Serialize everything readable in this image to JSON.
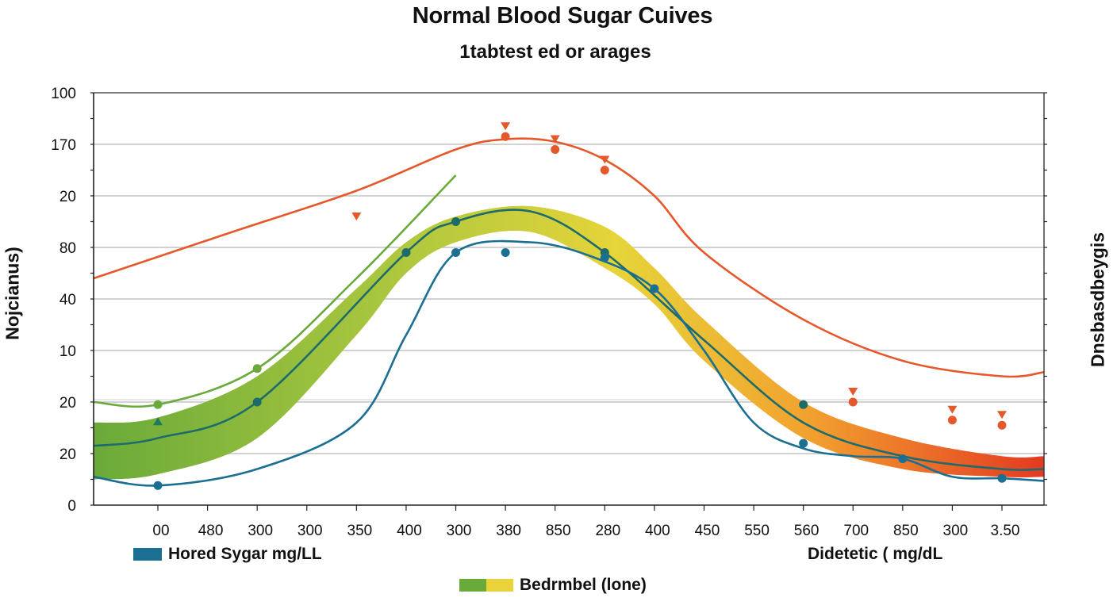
{
  "chart_data": {
    "type": "line",
    "title": "Normal Blood Sugar Cuives",
    "subtitle": "1tabtest ed or arages",
    "ylabel": "Nojcianus)",
    "ylabel_right": "Dnsbasdbeygis",
    "xlabel": "",
    "grid": true,
    "y_tick_labels": [
      "0",
      "20",
      "20",
      "10",
      "40",
      "80",
      "20",
      "170",
      "100"
    ],
    "y_tick_note": "tick labels as printed, bottom to top; series values below are in tick-level units (0 = bottom tick, 8 = top tick)",
    "ylim": [
      0,
      8
    ],
    "x_tick_labels": [
      "00",
      "480",
      "300",
      "300",
      "350",
      "400",
      "300",
      "380",
      "850",
      "280",
      "400",
      "450",
      "550",
      "560",
      "700",
      "850",
      "300",
      "3.50"
    ],
    "x_note": "series x values are tick indices (0 = first tick '00', 17 = last tick '3.50'); plot starts ~1.3 ticks left of first tick",
    "xlim": [
      -1.3,
      17.85
    ],
    "series": [
      {
        "name": "Upper curve (orange-red)",
        "color": "#e5582b",
        "marker": "triangle-down",
        "x": [
          -1.3,
          1.5,
          4,
          6,
          7,
          8,
          9,
          10,
          11,
          13,
          15,
          17,
          17.85
        ],
        "y": [
          4.4,
          5.3,
          6.1,
          6.9,
          7.1,
          7.05,
          6.7,
          6.0,
          4.9,
          3.6,
          2.8,
          2.5,
          2.58
        ],
        "marked_x": [
          4,
          7,
          8,
          9,
          14,
          16,
          17
        ],
        "marked_y": [
          5.4,
          7.15,
          6.9,
          6.5,
          2.0,
          1.65,
          1.55
        ]
      },
      {
        "name": "Top green curve",
        "color": "#6aaa3a",
        "marker": "circle",
        "x": [
          -1.3,
          0,
          2,
          4,
          6
        ],
        "y": [
          2.0,
          1.95,
          2.65,
          4.4,
          6.4
        ],
        "marked_x": [
          0,
          2
        ],
        "marked_y": [
          1.95,
          2.65
        ]
      },
      {
        "name": "Middle curve (dark teal)",
        "color": "#1e6b6b",
        "marker": "circle",
        "x": [
          -1.3,
          0,
          2,
          5,
          6,
          7.5,
          9,
          11,
          13,
          15,
          17,
          17.85
        ],
        "y": [
          1.15,
          1.3,
          2.0,
          4.9,
          5.5,
          5.7,
          4.9,
          3.2,
          1.6,
          0.95,
          0.7,
          0.7
        ],
        "marked_x": [
          2,
          5,
          6,
          9,
          13
        ],
        "marked_y": [
          2.0,
          4.9,
          5.5,
          4.9,
          1.95
        ]
      },
      {
        "name": "Hored Sygar mg/LL (blue)",
        "color": "#1a6f93",
        "marker": "circle",
        "x": [
          -1.3,
          0,
          2,
          4,
          5,
          6,
          7.5,
          8.8,
          10,
          11,
          12,
          13,
          14,
          15,
          16,
          17,
          17.85
        ],
        "y": [
          0.55,
          0.38,
          0.7,
          1.6,
          3.3,
          4.9,
          5.1,
          4.8,
          4.2,
          3.0,
          1.6,
          1.1,
          0.95,
          0.9,
          0.55,
          0.52,
          0.47
        ],
        "marked_x": [
          0,
          6,
          7,
          9,
          10,
          13,
          15,
          17
        ],
        "marked_y": [
          0.38,
          4.9,
          4.9,
          4.8,
          4.2,
          1.2,
          0.9,
          0.52
        ]
      }
    ],
    "band": {
      "name": "Bedrmbel (lone)",
      "colors": [
        "#6aaa3a",
        "#a8c63e",
        "#e6d43a",
        "#f2a22f",
        "#e43a22"
      ],
      "x": [
        -1.3,
        0,
        2,
        4,
        5,
        6,
        7.5,
        9,
        10,
        11,
        13,
        15,
        17,
        17.85
      ],
      "upper": [
        1.6,
        1.7,
        2.5,
        4.2,
        5.1,
        5.6,
        5.8,
        5.4,
        4.6,
        3.6,
        2.0,
        1.3,
        0.95,
        0.95
      ],
      "lower": [
        0.5,
        0.6,
        1.3,
        3.3,
        4.5,
        5.1,
        5.3,
        4.6,
        3.9,
        2.8,
        1.3,
        0.7,
        0.55,
        0.55
      ]
    },
    "legend": [
      {
        "label": "Hored Sygar mg/LL",
        "swatch": [
          "#1a6f93"
        ]
      },
      {
        "label": "Didetetic ( mg/dL",
        "swatch": []
      },
      {
        "label": "Bedrmbel (lone)",
        "swatch": [
          "#6aaa3a",
          "#e9d23a"
        ]
      }
    ],
    "legend_placement": "bottom"
  }
}
